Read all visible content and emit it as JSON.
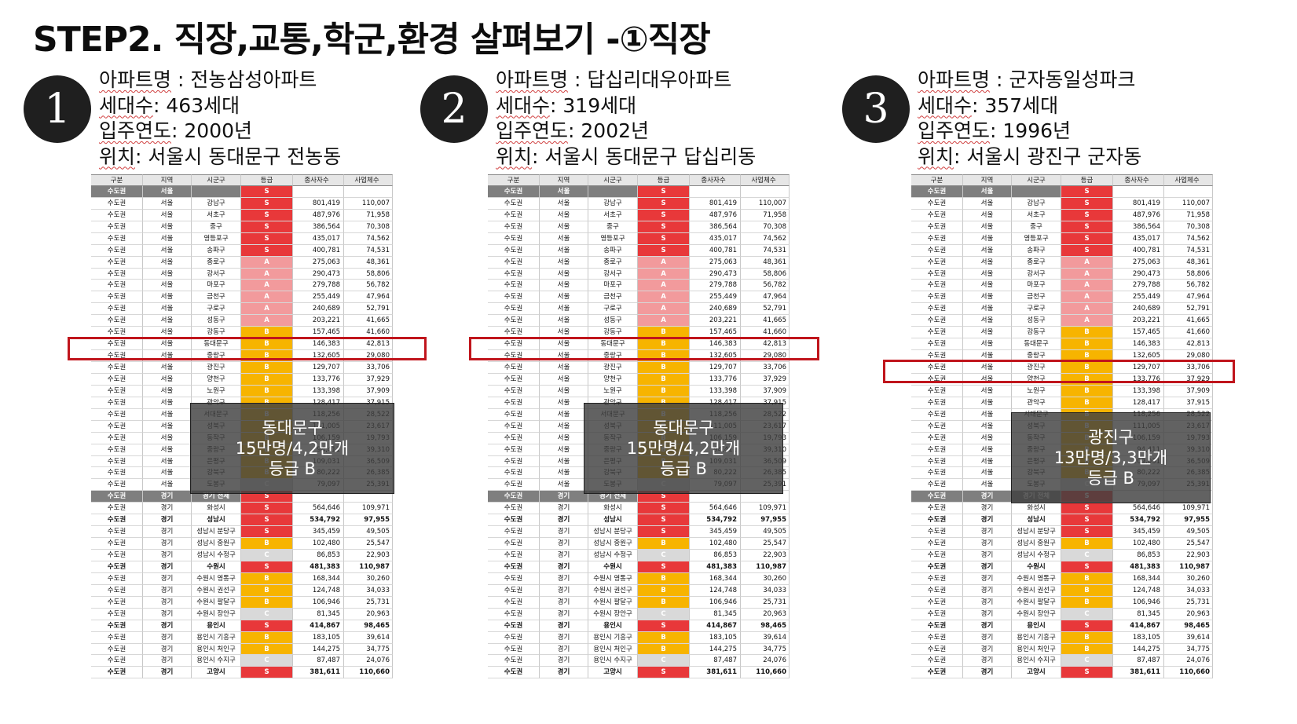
{
  "title": "STEP2. 직장,교통,학군,환경 살펴보기 -①직장",
  "headers": [
    "구분",
    "지역",
    "시군구",
    "등급",
    "종사자수",
    "사업체수"
  ],
  "panels": [
    {
      "num": "1",
      "name_label": "아파트명",
      "name": "전농삼성아파트",
      "units_label": "세대수",
      "units": "463세대",
      "year_label": "입주연도",
      "year": "2000년",
      "loc_label": "위치",
      "loc": "서울시 동대문구 전농동",
      "overlay": {
        "l1": "동대문구",
        "l2": "15만명/4,2만개",
        "l3": "등급 B"
      }
    },
    {
      "num": "2",
      "name_label": "아파트명",
      "name": "답십리대우아파트",
      "units_label": "세대수",
      "units": "319세대",
      "year_label": "입주연도",
      "year": "2002년",
      "loc_label": "위치",
      "loc": "서울시 동대문구 답십리동",
      "overlay": {
        "l1": "동대문구",
        "l2": "15만명/4,2만개",
        "l3": "등급 B"
      }
    },
    {
      "num": "3",
      "name_label": "아파트명",
      "name": "군자동일성파크",
      "units_label": "세대수",
      "units": "357세대",
      "year_label": "입주연도",
      "year": "1996년",
      "loc_label": "위치",
      "loc": "서울시 광진구 군자동",
      "overlay": {
        "l1": "광진구",
        "l2": "13만명/3,3만개",
        "l3": "등급 B"
      }
    }
  ],
  "rows": [
    [
      "수도권",
      "서울",
      "",
      "S",
      "",
      "",
      "region"
    ],
    [
      "수도권",
      "서울",
      "강남구",
      "S",
      "801,419",
      "110,007",
      ""
    ],
    [
      "수도권",
      "서울",
      "서초구",
      "S",
      "487,976",
      "71,958",
      ""
    ],
    [
      "수도권",
      "서울",
      "중구",
      "S",
      "386,564",
      "70,308",
      ""
    ],
    [
      "수도권",
      "서울",
      "영등포구",
      "S",
      "435,017",
      "74,562",
      ""
    ],
    [
      "수도권",
      "서울",
      "송파구",
      "S",
      "400,781",
      "74,531",
      ""
    ],
    [
      "수도권",
      "서울",
      "종로구",
      "A",
      "275,063",
      "48,361",
      ""
    ],
    [
      "수도권",
      "서울",
      "강서구",
      "A",
      "290,473",
      "58,806",
      ""
    ],
    [
      "수도권",
      "서울",
      "마포구",
      "A",
      "279,788",
      "56,782",
      ""
    ],
    [
      "수도권",
      "서울",
      "금천구",
      "A",
      "255,449",
      "47,964",
      ""
    ],
    [
      "수도권",
      "서울",
      "구로구",
      "A",
      "240,689",
      "52,791",
      ""
    ],
    [
      "수도권",
      "서울",
      "성동구",
      "A",
      "203,221",
      "41,665",
      ""
    ],
    [
      "수도권",
      "서울",
      "강동구",
      "B",
      "157,465",
      "41,660",
      ""
    ],
    [
      "수도권",
      "서울",
      "동대문구",
      "B",
      "146,383",
      "42,813",
      ""
    ],
    [
      "수도권",
      "서울",
      "중랑구",
      "B",
      "132,605",
      "29,080",
      ""
    ],
    [
      "수도권",
      "서울",
      "광진구",
      "B",
      "129,707",
      "33,706",
      ""
    ],
    [
      "수도권",
      "서울",
      "양천구",
      "B",
      "133,776",
      "37,929",
      ""
    ],
    [
      "수도권",
      "서울",
      "노원구",
      "B",
      "133,398",
      "37,909",
      ""
    ],
    [
      "수도권",
      "서울",
      "관악구",
      "B",
      "128,417",
      "37,915",
      ""
    ],
    [
      "수도권",
      "서울",
      "서대문구",
      "B",
      "118,256",
      "28,522",
      ""
    ],
    [
      "수도권",
      "서울",
      "성북구",
      "B",
      "111,005",
      "23,617",
      ""
    ],
    [
      "수도권",
      "서울",
      "동작구",
      "B",
      "106,159",
      "19,793",
      ""
    ],
    [
      "수도권",
      "서울",
      "중랑구",
      "B",
      "94,411",
      "39,310",
      ""
    ],
    [
      "수도권",
      "서울",
      "은평구",
      "B",
      "109,031",
      "36,509",
      ""
    ],
    [
      "수도권",
      "서울",
      "강북구",
      "B",
      "80,222",
      "26,385",
      ""
    ],
    [
      "수도권",
      "서울",
      "도봉구",
      "C",
      "79,097",
      "25,391",
      ""
    ],
    [
      "수도권",
      "경기",
      "경기 전체",
      "S",
      "",
      "",
      "region"
    ],
    [
      "수도권",
      "경기",
      "화성시",
      "S",
      "564,646",
      "109,971",
      ""
    ],
    [
      "수도권",
      "경기",
      "성남시",
      "S",
      "534,792",
      "97,955",
      "bold"
    ],
    [
      "수도권",
      "경기",
      "성남시 분당구",
      "S",
      "345,459",
      "49,505",
      ""
    ],
    [
      "수도권",
      "경기",
      "성남시 중원구",
      "B",
      "102,480",
      "25,547",
      ""
    ],
    [
      "수도권",
      "경기",
      "성남시 수정구",
      "C",
      "86,853",
      "22,903",
      ""
    ],
    [
      "수도권",
      "경기",
      "수원시",
      "S",
      "481,383",
      "110,987",
      "bold"
    ],
    [
      "수도권",
      "경기",
      "수원시 영통구",
      "B",
      "168,344",
      "30,260",
      ""
    ],
    [
      "수도권",
      "경기",
      "수원시 권선구",
      "B",
      "124,748",
      "34,033",
      ""
    ],
    [
      "수도권",
      "경기",
      "수원시 팔달구",
      "B",
      "106,946",
      "25,731",
      ""
    ],
    [
      "수도권",
      "경기",
      "수원시 장안구",
      "C",
      "81,345",
      "20,963",
      ""
    ],
    [
      "수도권",
      "경기",
      "용인시",
      "S",
      "414,867",
      "98,465",
      "bold"
    ],
    [
      "수도권",
      "경기",
      "용인시 기흥구",
      "B",
      "183,105",
      "39,614",
      ""
    ],
    [
      "수도권",
      "경기",
      "용인시 처인구",
      "B",
      "144,275",
      "34,775",
      ""
    ],
    [
      "수도권",
      "경기",
      "용인시 수지구",
      "C",
      "87,487",
      "24,076",
      ""
    ],
    [
      "수도권",
      "경기",
      "고양시",
      "S",
      "381,611",
      "110,660",
      "bold"
    ]
  ]
}
